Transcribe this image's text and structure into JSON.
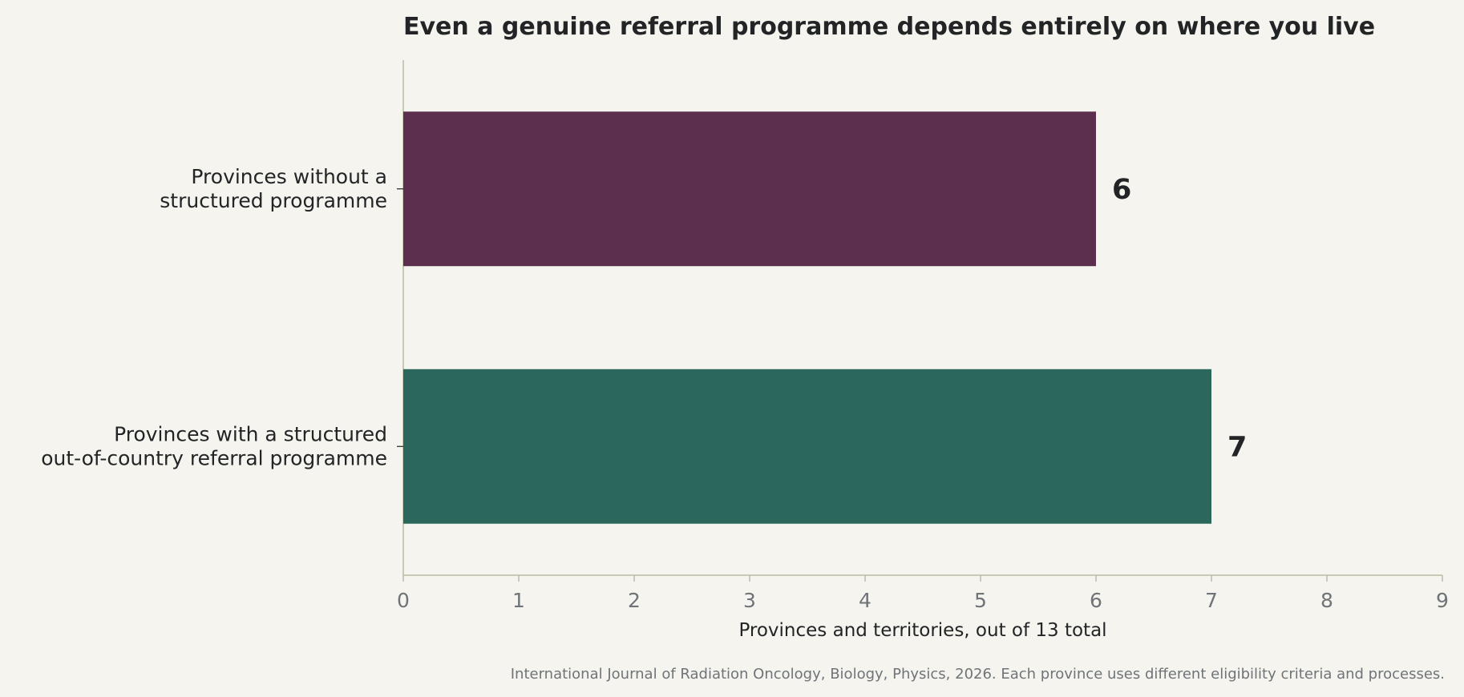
{
  "chart_data": {
    "type": "bar",
    "orientation": "horizontal",
    "title": "Even a genuine referral programme depends entirely on where you live",
    "categories": [
      [
        "Provinces without a",
        "structured programme"
      ],
      [
        "Provinces with a structured",
        "out-of-country referral programme"
      ]
    ],
    "values": [
      6,
      7
    ],
    "colors": [
      "#5c2f4f",
      "#2c675c"
    ],
    "xlabel": "Provinces and territories, out of 13 total",
    "ylabel": "",
    "xlim": [
      0,
      9
    ],
    "xticks": [
      0,
      1,
      2,
      3,
      4,
      5,
      6,
      7,
      8,
      9
    ],
    "grid": false,
    "source": "International Journal of Radiation Oncology, Biology, Physics, 2026. Each province uses different eligibility criteria and processes.",
    "axis_color": "#b9bba4"
  }
}
